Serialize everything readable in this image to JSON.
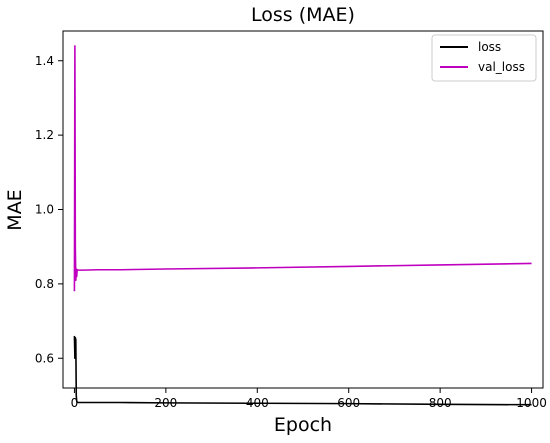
{
  "chart_data": {
    "type": "line",
    "title": "Loss (MAE)",
    "xlabel": "Epoch",
    "ylabel": "MAE",
    "xlim": [
      -25,
      1025
    ],
    "ylim": [
      0.52,
      1.48
    ],
    "xticks": [
      0,
      200,
      400,
      600,
      800,
      1000
    ],
    "yticks": [
      0.6,
      0.8,
      1.0,
      1.2,
      1.4
    ],
    "xtick_labels": [
      "0",
      "200",
      "400",
      "600",
      "800",
      "1000"
    ],
    "ytick_labels": [
      "0.6",
      "0.8",
      "1.0",
      "1.2",
      "1.4"
    ],
    "legend_position": "top-right",
    "grid": false,
    "series": [
      {
        "name": "loss",
        "color": "#000000",
        "x": [
          0,
          1,
          2,
          3,
          4,
          5,
          6,
          8,
          10,
          20,
          50,
          100,
          200,
          400,
          600,
          800,
          1000
        ],
        "y": [
          0.66,
          0.6,
          0.655,
          0.65,
          0.5,
          0.485,
          0.482,
          0.481,
          0.481,
          0.481,
          0.481,
          0.481,
          0.48,
          0.479,
          0.478,
          0.476,
          0.475
        ]
      },
      {
        "name": "val_loss",
        "color": "#bf00bf",
        "x": [
          0,
          1,
          2,
          3,
          4,
          5,
          6,
          8,
          10,
          20,
          50,
          100,
          200,
          400,
          600,
          800,
          1000
        ],
        "y": [
          0.78,
          1.44,
          0.9,
          0.81,
          0.84,
          0.82,
          0.838,
          0.837,
          0.837,
          0.837,
          0.838,
          0.838,
          0.84,
          0.843,
          0.847,
          0.851,
          0.855
        ]
      }
    ]
  }
}
